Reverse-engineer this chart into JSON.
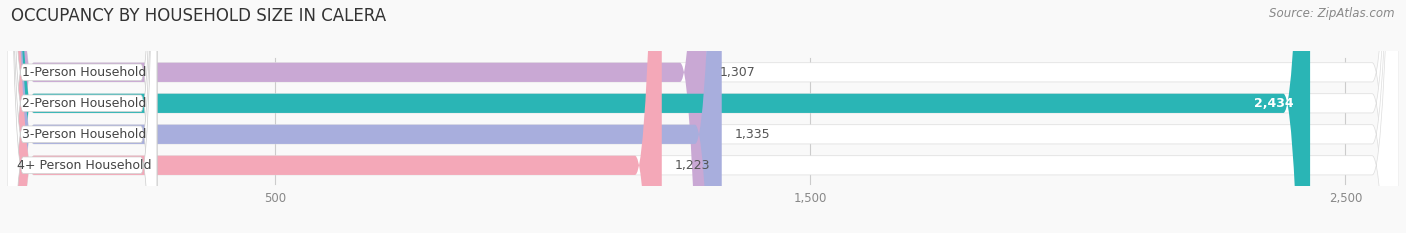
{
  "title": "OCCUPANCY BY HOUSEHOLD SIZE IN CALERA",
  "source": "Source: ZipAtlas.com",
  "categories": [
    "1-Person Household",
    "2-Person Household",
    "3-Person Household",
    "4+ Person Household"
  ],
  "values": [
    1307,
    2434,
    1335,
    1223
  ],
  "bar_colors": [
    "#c9a8d4",
    "#2ab5b5",
    "#a8aedd",
    "#f4a8b8"
  ],
  "value_labels": [
    "1,307",
    "2,434",
    "1,335",
    "1,223"
  ],
  "value_label_colors": [
    "#555555",
    "#ffffff",
    "#555555",
    "#555555"
  ],
  "xlim_max": 2600,
  "xticks": [
    500,
    1500,
    2500
  ],
  "xtick_labels": [
    "500",
    "1,500",
    "2,500"
  ],
  "title_fontsize": 12,
  "label_fontsize": 9,
  "value_fontsize": 9,
  "source_fontsize": 8.5,
  "background_color": "#f9f9f9",
  "bar_bg_color": "#eeeeee",
  "bar_track_color": "#e8e8e8"
}
